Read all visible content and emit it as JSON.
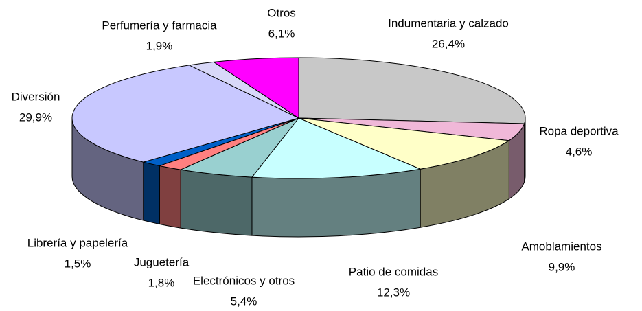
{
  "chart_data": {
    "type": "pie3d",
    "categories": [
      "Indumentaria y calzado",
      "Ropa deportiva",
      "Amoblamientos",
      "Patio de comidas",
      "Electrónicos y otros",
      "Juguetería",
      "Librería y papelería",
      "Diversión",
      "Perfumería y farmacia",
      "Otros"
    ],
    "values": [
      26.4,
      4.6,
      9.9,
      12.3,
      5.4,
      1.8,
      1.5,
      29.9,
      1.9,
      6.1
    ],
    "value_labels": [
      "26,4%",
      "4,6%",
      "9,9%",
      "12,3%",
      "5,4%",
      "1,8%",
      "1,5%",
      "29,9%",
      "1,9%",
      "6,1%"
    ],
    "colors": [
      "#c8c8c8",
      "#f0b8d8",
      "#ffffc8",
      "#c8ffff",
      "#99d0d0",
      "#ff8080",
      "#0060c8",
      "#c8c8ff",
      "#d8d8f8",
      "#ff00ff"
    ]
  }
}
